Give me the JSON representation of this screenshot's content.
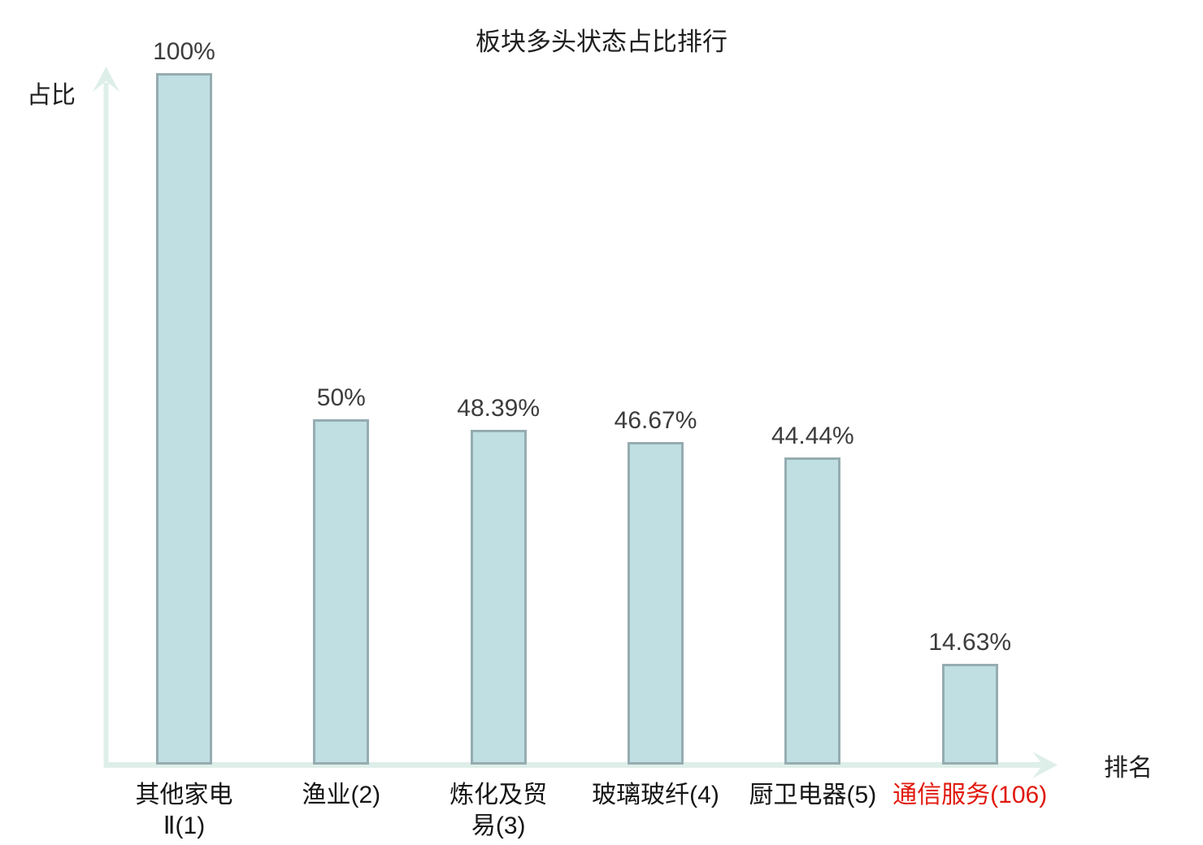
{
  "title": "板块多头状态占比排行",
  "axes": {
    "y_label": "占比",
    "x_label": "排名"
  },
  "colors": {
    "background": "#ffffff",
    "bar_fill": "#bfdfe2",
    "bar_border": "#95acb1",
    "axis": "#deeee9",
    "value_label": "#3c3c3c",
    "category_label": "#161616",
    "highlight_red": "#e1190e",
    "title": "#1f1f1f"
  },
  "chart_data": {
    "type": "bar",
    "title": "板块多头状态占比排行",
    "xlabel": "排名",
    "ylabel": "占比",
    "ylim": [
      0,
      100
    ],
    "grid": false,
    "legend": false,
    "categories": [
      "其他家电\nⅡ(1)",
      "渔业(2)",
      "炼化及贸\n易(3)",
      "玻璃玻纤(4)",
      "厨卫电器(5)",
      "通信服务(106)"
    ],
    "values": [
      100,
      50,
      48.39,
      46.67,
      44.44,
      14.63
    ],
    "value_labels": [
      "100%",
      "50%",
      "48.39%",
      "46.67%",
      "44.44%",
      "14.63%"
    ],
    "category_colors": [
      "#161616",
      "#161616",
      "#161616",
      "#161616",
      "#161616",
      "#e1190e"
    ]
  }
}
